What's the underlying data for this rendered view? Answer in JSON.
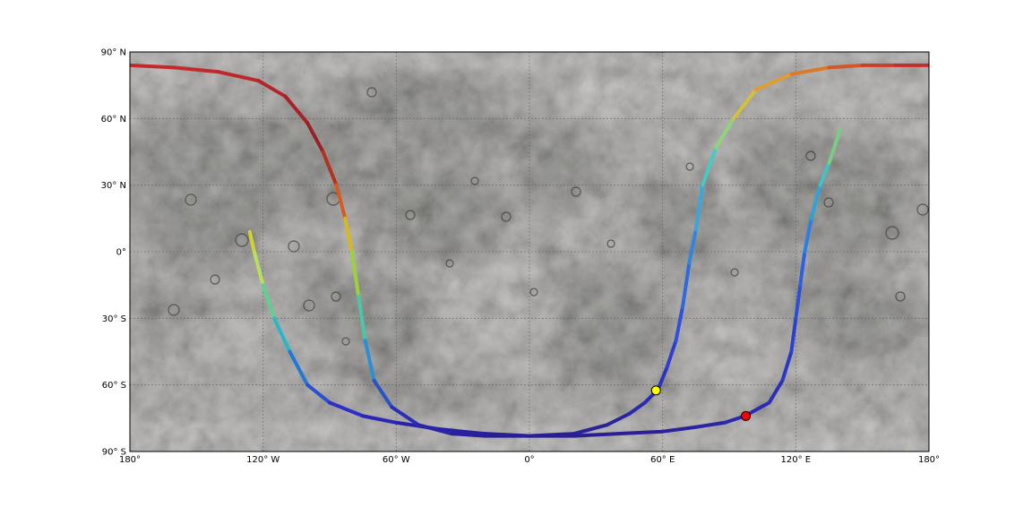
{
  "map": {
    "projection": "equirectangular",
    "basemap": "grey cratered planetary surface (moon-like albedo texture)",
    "grid": "dotted graticule every 30 degrees",
    "lon_ticks": [
      "180°",
      "120° W",
      "60° W",
      "0°",
      "60° E",
      "120° E",
      "180°"
    ],
    "lat_ticks": [
      "90° N",
      "60° N",
      "30° N",
      "0°",
      "30° S",
      "60° S",
      "90° S"
    ]
  },
  "track": {
    "colormap": "jet (blue → cyan → green → yellow → red)",
    "segments": [
      {
        "name": "track-segment-1",
        "points": [
          [
            -126,
            9
          ],
          [
            -124,
            0
          ],
          [
            -120,
            -15
          ],
          [
            -115,
            -30
          ],
          [
            -108,
            -45
          ],
          [
            -100,
            -60
          ],
          [
            -90,
            -68
          ],
          [
            -75,
            -74
          ],
          [
            -60,
            -77
          ],
          [
            -40,
            -80
          ],
          [
            -20,
            -82
          ],
          [
            0,
            -83
          ],
          [
            20,
            -82
          ],
          [
            35,
            -78
          ],
          [
            45,
            -73
          ],
          [
            52,
            -68
          ],
          [
            58,
            -62
          ]
        ],
        "colors": [
          "#cfd52a",
          "#b8e05a",
          "#5dd18d",
          "#27b8c8",
          "#1f7ad6",
          "#2a4fd0",
          "#2f2fc8",
          "#2b26b6",
          "#2a23a8",
          "#291f9f",
          "#291f98",
          "#2a2096",
          "#2a2296",
          "#2b259c",
          "#2c28a8",
          "#2b2cb2",
          "#2a33bf"
        ]
      },
      {
        "name": "track-segment-2",
        "points": [
          [
            58,
            -62
          ],
          [
            62,
            -52
          ],
          [
            66,
            -40
          ],
          [
            69,
            -25
          ],
          [
            72,
            -5
          ],
          [
            75,
            10
          ],
          [
            78,
            30
          ],
          [
            84,
            47
          ],
          [
            92,
            60
          ],
          [
            102,
            73
          ],
          [
            118,
            80
          ],
          [
            135,
            83
          ],
          [
            150,
            84
          ],
          [
            165,
            84
          ],
          [
            180,
            84
          ]
        ],
        "colors": [
          "#2a33bf",
          "#2f3ece",
          "#2f4fdc",
          "#2e69e0",
          "#2e86e2",
          "#38a7dc",
          "#47c9c4",
          "#8fd47a",
          "#d5c03a",
          "#e09e2e",
          "#dc7a2a",
          "#d2582a",
          "#c9402a",
          "#c2302c",
          "#c12a2c"
        ]
      },
      {
        "name": "track-segment-3",
        "points": [
          [
            -180,
            84
          ],
          [
            -160,
            83
          ],
          [
            -140,
            81
          ],
          [
            -122,
            77
          ],
          [
            -110,
            70
          ],
          [
            -100,
            58
          ],
          [
            -93,
            45
          ],
          [
            -87,
            30
          ],
          [
            -83,
            15
          ],
          [
            -80,
            0
          ],
          [
            -77,
            -20
          ],
          [
            -74,
            -40
          ],
          [
            -70,
            -58
          ],
          [
            -62,
            -70
          ],
          [
            -50,
            -78
          ],
          [
            -35,
            -82
          ],
          [
            -20,
            -83
          ],
          [
            0,
            -83
          ],
          [
            20,
            -83
          ],
          [
            40,
            -82
          ],
          [
            60,
            -81
          ],
          [
            75,
            -79
          ],
          [
            88,
            -77
          ],
          [
            97,
            -74
          ]
        ],
        "colors": [
          "#c42a2c",
          "#c22a2c",
          "#bd282c",
          "#b5262c",
          "#a82328",
          "#9a2028",
          "#b43222",
          "#d85a1e",
          "#d9b81a",
          "#9bd23c",
          "#48c8a8",
          "#2b8ed8",
          "#2a52c8",
          "#2a2eb6",
          "#2a25a8",
          "#29209d",
          "#291e96",
          "#291e94",
          "#291e94",
          "#2a1f96",
          "#2b229c",
          "#2c26a4",
          "#2b2aae",
          "#2a2cb4"
        ]
      },
      {
        "name": "track-segment-4",
        "points": [
          [
            97,
            -74
          ],
          [
            108,
            -68
          ],
          [
            114,
            -58
          ],
          [
            118,
            -45
          ],
          [
            120,
            -30
          ],
          [
            122,
            -15
          ],
          [
            124,
            0
          ],
          [
            127,
            15
          ],
          [
            131,
            30
          ],
          [
            135,
            40
          ],
          [
            140,
            55
          ]
        ],
        "colors": [
          "#2a2cb4",
          "#2b2fbc",
          "#2b36c6",
          "#2b40d0",
          "#2c4edb",
          "#2c62e2",
          "#2d7ee4",
          "#2fa2dc",
          "#3fc3c7",
          "#78cd86",
          "#8fd35f"
        ]
      }
    ],
    "markers": [
      {
        "name": "start-marker",
        "lon": 57,
        "lat": -62.5,
        "color": "#ffff00"
      },
      {
        "name": "end-marker",
        "lon": 97.5,
        "lat": -74,
        "color": "#ff0000"
      }
    ]
  }
}
